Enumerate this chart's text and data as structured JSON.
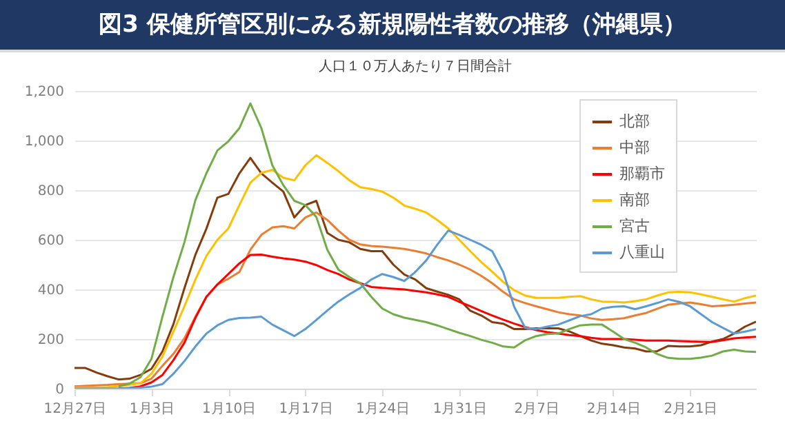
{
  "chart_data": {
    "type": "line",
    "title": "図3 保健所管区別にみる新規陽性者数の推移（沖縄県）",
    "subtitle": "人口１０万人あたり７日間合計",
    "categories": [
      "12月27日",
      null,
      null,
      null,
      null,
      null,
      null,
      "1月3日",
      null,
      null,
      null,
      null,
      null,
      null,
      "1月10日",
      null,
      null,
      null,
      null,
      null,
      null,
      "1月17日",
      null,
      null,
      null,
      null,
      null,
      null,
      "1月24日",
      null,
      null,
      null,
      null,
      null,
      null,
      "1月31日",
      null,
      null,
      null,
      null,
      null,
      null,
      "2月7日",
      null,
      null,
      null,
      null,
      null,
      null,
      "2月14日",
      null,
      null,
      null,
      null,
      null,
      null,
      "2月21日",
      null,
      null,
      null,
      null,
      null,
      null
    ],
    "series": [
      {
        "name": "北部",
        "color": "#843c0c",
        "values": [
          83,
          83,
          65,
          50,
          37,
          40,
          55,
          80,
          150,
          260,
          405,
          540,
          645,
          770,
          785,
          868,
          930,
          868,
          830,
          794,
          690,
          740,
          757,
          628,
          600,
          590,
          563,
          554,
          554,
          500,
          460,
          440,
          405,
          391,
          378,
          360,
          314,
          295,
          268,
          262,
          240,
          240,
          243,
          243,
          243,
          231,
          212,
          194,
          181,
          175,
          166,
          162,
          150,
          151,
          172,
          170,
          170,
          175,
          190,
          200,
          222,
          250,
          270
        ]
      },
      {
        "name": "中部",
        "color": "#ed7d31",
        "values": [
          9,
          11,
          13,
          15,
          18,
          20,
          22,
          40,
          92,
          140,
          203,
          290,
          370,
          420,
          443,
          470,
          560,
          620,
          650,
          655,
          646,
          690,
          710,
          680,
          637,
          600,
          581,
          575,
          572,
          568,
          563,
          555,
          545,
          530,
          517,
          500,
          480,
          455,
          425,
          390,
          360,
          345,
          332,
          320,
          308,
          300,
          295,
          283,
          277,
          280,
          284,
          295,
          305,
          322,
          338,
          343,
          347,
          340,
          332,
          335,
          338,
          343,
          347
        ]
      },
      {
        "name": "那覇市",
        "color": "#ff0000",
        "values": [
          null,
          null,
          null,
          null,
          0,
          3,
          9,
          25,
          55,
          115,
          185,
          285,
          370,
          420,
          462,
          505,
          539,
          540,
          532,
          525,
          520,
          512,
          498,
          478,
          462,
          440,
          425,
          410,
          406,
          403,
          400,
          394,
          388,
          380,
          370,
          350,
          332,
          313,
          295,
          278,
          262,
          248,
          236,
          228,
          222,
          216,
          212,
          205,
          200,
          200,
          200,
          197,
          194,
          194,
          194,
          192,
          190,
          189,
          188,
          195,
          203,
          206,
          209
        ]
      },
      {
        "name": "南部",
        "color": "#ffc000",
        "values": [
          4,
          4,
          4,
          6,
          9,
          15,
          22,
          60,
          129,
          230,
          332,
          440,
          535,
          600,
          646,
          740,
          830,
          870,
          882,
          850,
          840,
          900,
          941,
          910,
          877,
          840,
          812,
          805,
          794,
          770,
          738,
          725,
          710,
          680,
          646,
          600,
          554,
          510,
          471,
          430,
          397,
          375,
          366,
          366,
          366,
          370,
          373,
          360,
          351,
          350,
          347,
          353,
          360,
          375,
          388,
          390,
          388,
          380,
          370,
          360,
          351,
          365,
          375
        ]
      },
      {
        "name": "宮古",
        "color": "#70ad47",
        "values": [
          null,
          null,
          null,
          null,
          9,
          20,
          46,
          120,
          290,
          450,
          590,
          760,
          868,
          960,
          997,
          1050,
          1150,
          1050,
          900,
          820,
          757,
          740,
          692,
          560,
          480,
          450,
          425,
          370,
          323,
          300,
          286,
          277,
          268,
          255,
          240,
          225,
          212,
          197,
          185,
          170,
          166,
          195,
          212,
          220,
          222,
          240,
          255,
          258,
          258,
          230,
          200,
          185,
          166,
          140,
          124,
          120,
          120,
          125,
          133,
          150,
          157,
          150,
          148
        ]
      },
      {
        "name": "八重山",
        "color": "#5b9bd5",
        "values": [
          0,
          0,
          0,
          0,
          0,
          2,
          4,
          8,
          18,
          60,
          111,
          170,
          222,
          255,
          277,
          285,
          286,
          290,
          258,
          235,
          212,
          240,
          277,
          315,
          351,
          380,
          406,
          440,
          462,
          450,
          434,
          470,
          517,
          580,
          637,
          620,
          600,
          580,
          554,
          470,
          330,
          245,
          240,
          250,
          258,
          275,
          292,
          300,
          323,
          330,
          332,
          320,
          332,
          345,
          360,
          350,
          332,
          300,
          268,
          245,
          222,
          230,
          240
        ]
      }
    ],
    "ylim": [
      0,
      1200
    ],
    "yticks": [
      0,
      200,
      400,
      600,
      800,
      {
        "value": 1000,
        "label": "1,000"
      },
      {
        "value": 1200,
        "label": "1,200"
      }
    ],
    "grid": "y",
    "legend": "top right",
    "marker": "none",
    "line_style": "solid"
  }
}
